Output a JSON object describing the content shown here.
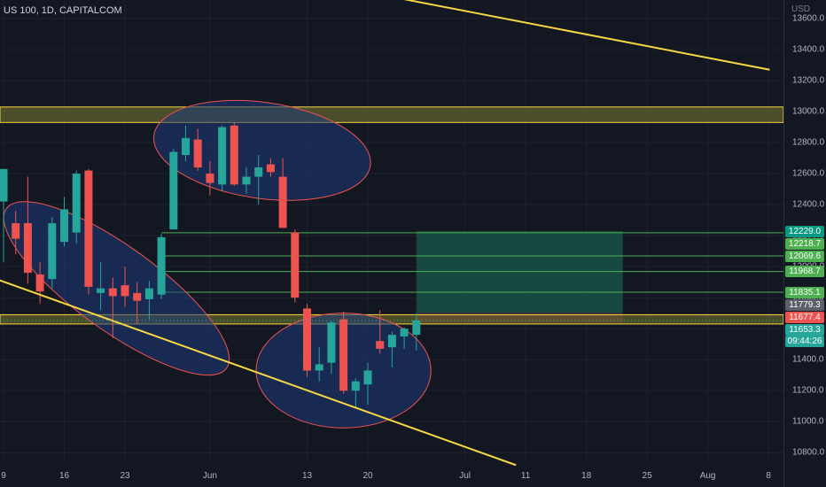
{
  "header": {
    "symbol": "US 100, 1D, CAPITALCOM",
    "currency": "USD"
  },
  "colors": {
    "background": "#131722",
    "up": "#26a69a",
    "down": "#ef5350",
    "trendline": "#f7d744",
    "zone": "#6b6b2f",
    "ellipse_fill": "#1e3a7a",
    "ellipse_stroke": "#ef5350",
    "target_box": "#1a5a4a",
    "stop_box": "#5a2030",
    "level_line": "#4caf50"
  },
  "chart_data": {
    "type": "candlestick",
    "y_axis": {
      "min": 10750,
      "max": 13720,
      "ticks": [
        10800,
        11000,
        11200,
        11400,
        11600,
        11800,
        12000,
        12200,
        12400,
        12600,
        12800,
        13000,
        13200,
        13400,
        13600
      ],
      "tick_labels": [
        "10800.0",
        "11000.0",
        "11200.0",
        "11400.0",
        "11600.0",
        "11800.0",
        "12000.0",
        "12200.0",
        "12400.0",
        "12600.0",
        "12800.0",
        "13000.0",
        "13200.0",
        "13400.0",
        "13600.0"
      ]
    },
    "x_axis": {
      "labels": [
        "9",
        "16",
        "23",
        "Jun",
        "13",
        "20",
        "Jul",
        "11",
        "18",
        "25",
        "Aug",
        "8"
      ],
      "label_slots": [
        0,
        5,
        10,
        17,
        25,
        30,
        38,
        43,
        48,
        53,
        58,
        63
      ]
    },
    "candles": [
      {
        "slot": 0,
        "o": 12420,
        "h": 12630,
        "l": 12030,
        "c": 12630
      },
      {
        "slot": 1,
        "o": 12280,
        "h": 12360,
        "l": 12080,
        "c": 12180
      },
      {
        "slot": 2,
        "o": 12280,
        "h": 12580,
        "l": 11890,
        "c": 11960
      },
      {
        "slot": 3,
        "o": 11950,
        "h": 12030,
        "l": 11760,
        "c": 11840
      },
      {
        "slot": 4,
        "o": 11920,
        "h": 12320,
        "l": 11860,
        "c": 12280
      },
      {
        "slot": 5,
        "o": 12160,
        "h": 12450,
        "l": 12130,
        "c": 12370
      },
      {
        "slot": 6,
        "o": 12220,
        "h": 12620,
        "l": 12150,
        "c": 12600
      },
      {
        "slot": 7,
        "o": 12620,
        "h": 12630,
        "l": 11820,
        "c": 11870
      },
      {
        "slot": 8,
        "o": 11830,
        "h": 12030,
        "l": 11720,
        "c": 11860
      },
      {
        "slot": 9,
        "o": 11860,
        "h": 11930,
        "l": 11540,
        "c": 11810
      },
      {
        "slot": 10,
        "o": 11880,
        "h": 12000,
        "l": 11740,
        "c": 11810
      },
      {
        "slot": 11,
        "o": 11830,
        "h": 11900,
        "l": 11630,
        "c": 11780
      },
      {
        "slot": 12,
        "o": 11790,
        "h": 11910,
        "l": 11660,
        "c": 11860
      },
      {
        "slot": 13,
        "o": 11820,
        "h": 12210,
        "l": 11790,
        "c": 12190
      },
      {
        "slot": 14,
        "o": 12240,
        "h": 12760,
        "l": 12240,
        "c": 12740
      },
      {
        "slot": 15,
        "o": 12720,
        "h": 12910,
        "l": 12680,
        "c": 12830
      },
      {
        "slot": 16,
        "o": 12820,
        "h": 12890,
        "l": 12620,
        "c": 12640
      },
      {
        "slot": 17,
        "o": 12600,
        "h": 12680,
        "l": 12460,
        "c": 12540
      },
      {
        "slot": 18,
        "o": 12530,
        "h": 12910,
        "l": 12490,
        "c": 12900
      },
      {
        "slot": 19,
        "o": 12910,
        "h": 12930,
        "l": 12520,
        "c": 12530
      },
      {
        "slot": 20,
        "o": 12530,
        "h": 12640,
        "l": 12470,
        "c": 12580
      },
      {
        "slot": 21,
        "o": 12580,
        "h": 12720,
        "l": 12400,
        "c": 12640
      },
      {
        "slot": 22,
        "o": 12660,
        "h": 12700,
        "l": 12580,
        "c": 12610
      },
      {
        "slot": 23,
        "o": 12580,
        "h": 12700,
        "l": 12250,
        "c": 12250
      },
      {
        "slot": 24,
        "o": 12220,
        "h": 12240,
        "l": 11770,
        "c": 11800
      },
      {
        "slot": 25,
        "o": 11730,
        "h": 11760,
        "l": 11290,
        "c": 11330
      },
      {
        "slot": 26,
        "o": 11330,
        "h": 11480,
        "l": 11260,
        "c": 11370
      },
      {
        "slot": 27,
        "o": 11380,
        "h": 11650,
        "l": 11310,
        "c": 11640
      },
      {
        "slot": 28,
        "o": 11660,
        "h": 11710,
        "l": 11180,
        "c": 11200
      },
      {
        "slot": 29,
        "o": 11200,
        "h": 11280,
        "l": 11090,
        "c": 11260
      },
      {
        "slot": 30,
        "o": 11240,
        "h": 11380,
        "l": 11110,
        "c": 11330
      },
      {
        "slot": 31,
        "o": 11520,
        "h": 11720,
        "l": 11440,
        "c": 11470
      },
      {
        "slot": 32,
        "o": 11480,
        "h": 11580,
        "l": 11350,
        "c": 11560
      },
      {
        "slot": 33,
        "o": 11550,
        "h": 11610,
        "l": 11470,
        "c": 11600
      },
      {
        "slot": 34,
        "o": 11560,
        "h": 11700,
        "l": 11460,
        "c": 11653
      }
    ],
    "horizontal_zones": [
      {
        "from": 12930,
        "to": 13030
      },
      {
        "from": 11630,
        "to": 11690
      }
    ],
    "trendlines": [
      {
        "x1_slot": -0.6,
        "y1": 11920,
        "x2_slot": 42.2,
        "y2": 10720
      },
      {
        "x1_slot": 28.7,
        "y1": 13790,
        "x2_slot": 63.1,
        "y2": 13270
      }
    ],
    "ellipses": [
      {
        "cx_slot": 21.3,
        "cy": 12750,
        "rx_slots": 9,
        "ry_value": 310,
        "angle": 8
      },
      {
        "cx_slot": 9.3,
        "cy": 11860,
        "rx_slots": 11.2,
        "ry_value": 270,
        "angle": 36
      },
      {
        "cx_slot": 28,
        "cy": 11330,
        "rx_slots": 7.2,
        "ry_value": 370,
        "angle": 0
      }
    ],
    "long_position": {
      "from_slot": 34,
      "to_slot": 51,
      "entry": 11700,
      "target": 12229,
      "stop": 11640
    },
    "level_lines": [
      12218.7,
      12069.6,
      11968.7,
      11835.1
    ],
    "price_labels": [
      {
        "value": 12229.0,
        "text": "12229.0",
        "color": "#089981"
      },
      {
        "value": 12218.7,
        "text": "12218.7",
        "color": "#4caf50"
      },
      {
        "value": 12069.6,
        "text": "12069.6",
        "color": "#4caf50"
      },
      {
        "value": 11968.7,
        "text": "11968.7",
        "color": "#4caf50"
      },
      {
        "value": 11835.1,
        "text": "11835.1",
        "color": "#4caf50"
      },
      {
        "value": 11779.3,
        "text": "11779.3",
        "color": "#5d606b"
      },
      {
        "value": 11677.4,
        "text": "11677.4",
        "color": "#ef5350"
      },
      {
        "value": 11653.3,
        "text": "11653.3",
        "color": "#26a69a"
      }
    ],
    "countdown": "09:44:26"
  }
}
